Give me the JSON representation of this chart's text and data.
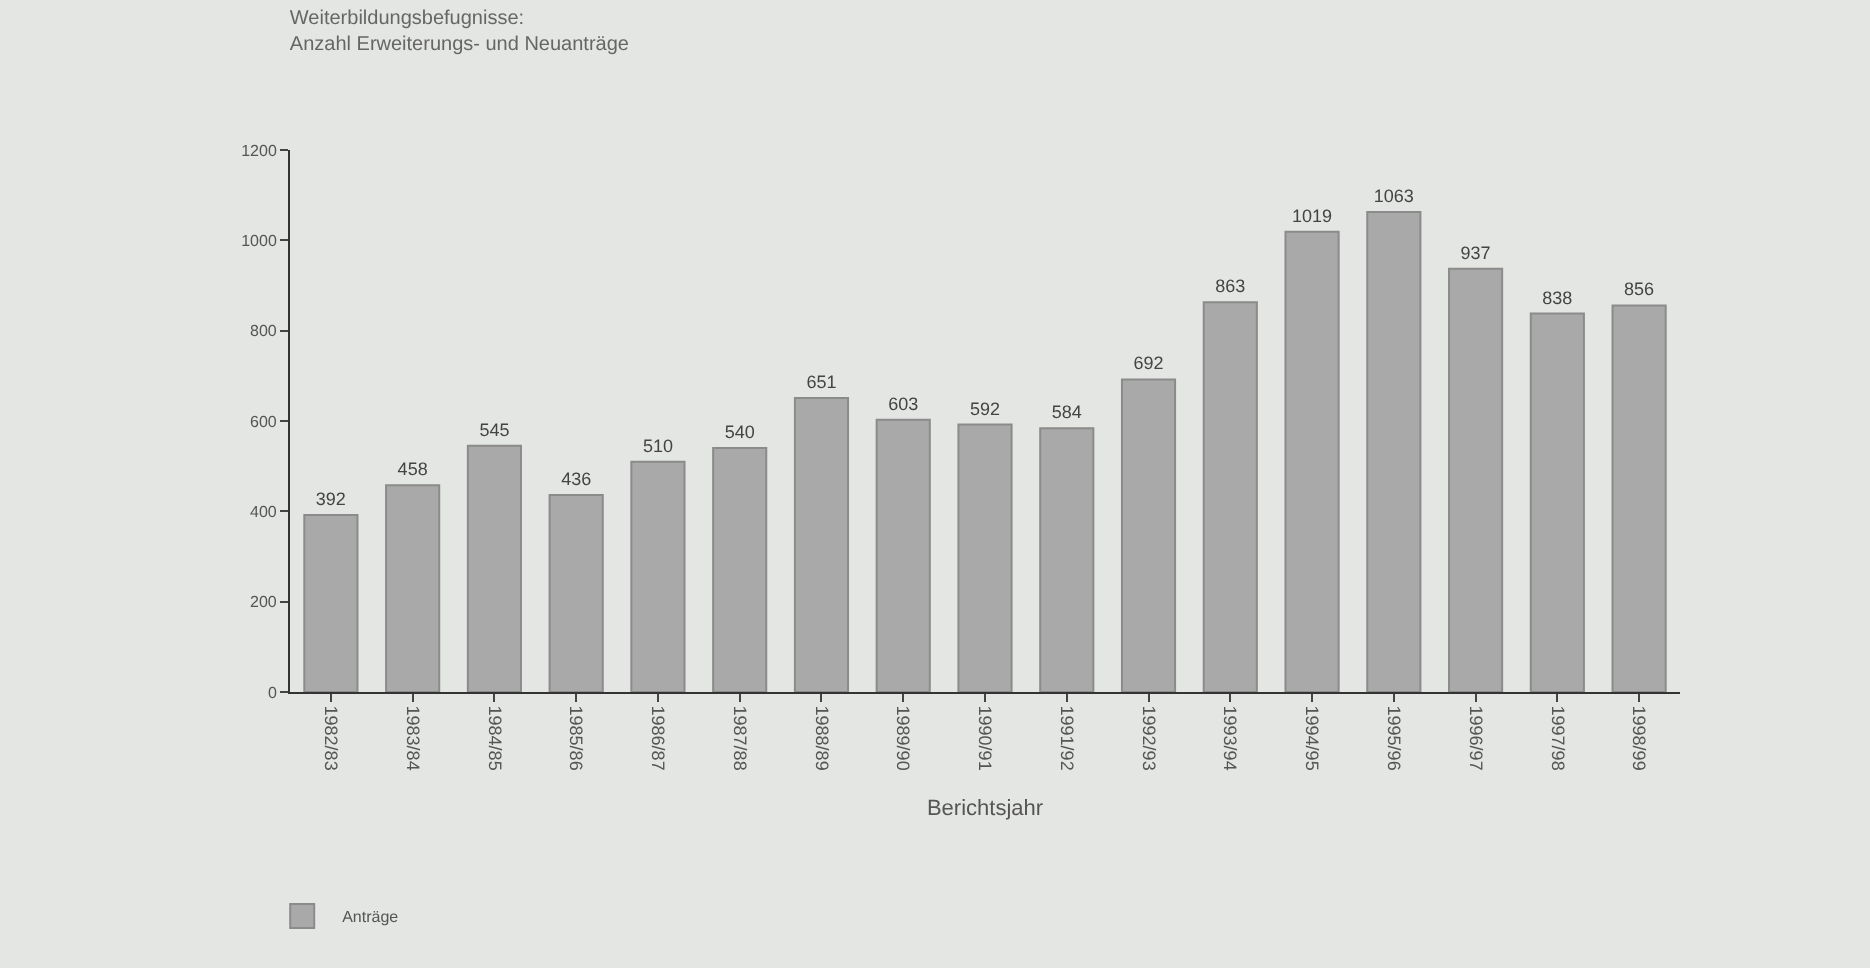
{
  "chart_data": {
    "type": "bar",
    "title": "Weiterbildungsbefugnisse:\nAnzahl Erweiterungs- und Neuanträge",
    "xlabel": "Berichtsjahr",
    "categories": [
      "1982/83",
      "1983/84",
      "1984/85",
      "1985/86",
      "1986/87",
      "1987/88",
      "1988/89",
      "1989/90",
      "1990/91",
      "1991/92",
      "1992/93",
      "1993/94",
      "1994/95",
      "1995/96",
      "1996/97",
      "1997/98",
      "1998/99"
    ],
    "series": [
      {
        "name": "Anträge",
        "color": "#a8a9a8",
        "values": [
          392,
          458,
          545,
          436,
          510,
          540,
          651,
          603,
          592,
          584,
          692,
          863,
          1019,
          1063,
          937,
          838,
          856
        ]
      }
    ],
    "ylim": [
      0,
      1200
    ],
    "yticks": [
      0,
      200,
      400,
      600,
      800,
      1000,
      1200
    ],
    "data_labels": true,
    "grid": false,
    "legend": "bottom left"
  }
}
